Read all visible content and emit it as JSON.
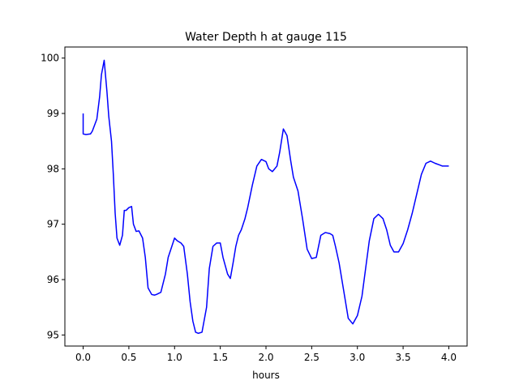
{
  "chart_data": {
    "type": "line",
    "title": "Water Depth h at gauge 115",
    "xlabel": "hours",
    "ylabel": "",
    "xlim": [
      -0.2,
      4.2
    ],
    "ylim": [
      94.8,
      100.2
    ],
    "xticks": [
      0.0,
      0.5,
      1.0,
      1.5,
      2.0,
      2.5,
      3.0,
      3.5,
      4.0
    ],
    "xtick_labels": [
      "0.0",
      "0.5",
      "1.0",
      "1.5",
      "2.0",
      "2.5",
      "3.0",
      "3.5",
      "4.0"
    ],
    "yticks": [
      95,
      96,
      97,
      98,
      99,
      100
    ],
    "ytick_labels": [
      "95",
      "96",
      "97",
      "98",
      "99",
      "100"
    ],
    "grid": false,
    "series": [
      {
        "color": "#0000ff",
        "x": [
          0.0,
          0.0,
          0.03,
          0.08,
          0.1,
          0.15,
          0.18,
          0.2,
          0.23,
          0.26,
          0.28,
          0.31,
          0.33,
          0.35,
          0.37,
          0.4,
          0.43,
          0.45,
          0.47,
          0.5,
          0.53,
          0.55,
          0.58,
          0.61,
          0.65,
          0.68,
          0.71,
          0.75,
          0.78,
          0.8,
          0.85,
          0.9,
          0.93,
          0.97,
          1.0,
          1.03,
          1.07,
          1.1,
          1.14,
          1.17,
          1.2,
          1.23,
          1.26,
          1.3,
          1.35,
          1.38,
          1.42,
          1.46,
          1.5,
          1.53,
          1.58,
          1.61,
          1.64,
          1.67,
          1.7,
          1.73,
          1.77,
          1.8,
          1.85,
          1.9,
          1.95,
          2.0,
          2.03,
          2.07,
          2.12,
          2.15,
          2.19,
          2.23,
          2.27,
          2.3,
          2.35,
          2.4,
          2.45,
          2.5,
          2.55,
          2.6,
          2.65,
          2.7,
          2.73,
          2.76,
          2.8,
          2.85,
          2.9,
          2.95,
          3.0,
          3.05,
          3.09,
          3.13,
          3.18,
          3.23,
          3.28,
          3.32,
          3.36,
          3.4,
          3.45,
          3.5,
          3.55,
          3.6,
          3.65,
          3.7,
          3.75,
          3.8,
          3.85,
          3.9,
          3.93,
          3.97,
          4.0
        ],
        "y": [
          99.0,
          98.63,
          98.62,
          98.63,
          98.68,
          98.9,
          99.3,
          99.7,
          99.96,
          99.4,
          98.95,
          98.5,
          97.9,
          97.2,
          96.75,
          96.62,
          96.8,
          97.25,
          97.25,
          97.3,
          97.32,
          97.0,
          96.87,
          96.88,
          96.75,
          96.4,
          95.85,
          95.73,
          95.72,
          95.73,
          95.77,
          96.1,
          96.4,
          96.6,
          96.75,
          96.7,
          96.66,
          96.6,
          96.1,
          95.6,
          95.25,
          95.05,
          95.03,
          95.05,
          95.5,
          96.2,
          96.6,
          96.66,
          96.66,
          96.4,
          96.1,
          96.02,
          96.3,
          96.6,
          96.8,
          96.9,
          97.1,
          97.3,
          97.7,
          98.05,
          98.17,
          98.13,
          98.0,
          97.95,
          98.05,
          98.3,
          98.72,
          98.6,
          98.15,
          97.85,
          97.6,
          97.1,
          96.55,
          96.38,
          96.4,
          96.8,
          96.85,
          96.83,
          96.8,
          96.6,
          96.3,
          95.8,
          95.3,
          95.2,
          95.35,
          95.7,
          96.2,
          96.7,
          97.1,
          97.18,
          97.1,
          96.9,
          96.62,
          96.5,
          96.5,
          96.65,
          96.9,
          97.2,
          97.55,
          97.9,
          98.1,
          98.14,
          98.1,
          98.07,
          98.05,
          98.05,
          98.05
        ]
      }
    ]
  }
}
